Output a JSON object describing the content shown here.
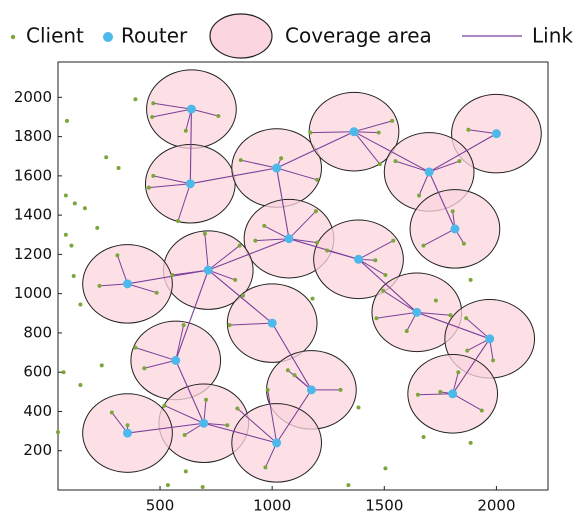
{
  "chart_data": {
    "type": "network",
    "series": [
      {
        "name": "Client",
        "color": "#7aa63a"
      },
      {
        "name": "Router",
        "color": "#4db8ea"
      },
      {
        "name": "Coverage area",
        "color": "#fbd6de"
      },
      {
        "name": "Link",
        "color": "#7b3f99"
      }
    ],
    "xlim": [
      45,
      2230
    ],
    "ylim": [
      0,
      2180
    ],
    "xticks": [
      500,
      1000,
      1500,
      2000
    ],
    "yticks": [
      200,
      400,
      600,
      800,
      1000,
      1200,
      1400,
      1600,
      1800,
      2000
    ],
    "coverage_radius": 200,
    "routers": {
      "x": [
        640,
        635,
        1020,
        1365,
        2000,
        1700,
        1815,
        1075,
        1385,
        715,
        355,
        1645,
        1000,
        1970,
        570,
        1175,
        1805,
        695,
        355,
        1020
      ],
      "y": [
        1940,
        1560,
        1640,
        1825,
        1815,
        1620,
        1330,
        1280,
        1175,
        1120,
        1050,
        905,
        850,
        770,
        660,
        510,
        490,
        340,
        290,
        240
      ]
    },
    "router_links": [
      [
        0,
        1
      ],
      [
        1,
        2
      ],
      [
        2,
        3
      ],
      [
        3,
        5
      ],
      [
        5,
        4
      ],
      [
        5,
        6
      ],
      [
        2,
        7
      ],
      [
        7,
        8
      ],
      [
        7,
        9
      ],
      [
        9,
        10
      ],
      [
        8,
        11
      ],
      [
        11,
        13
      ],
      [
        12,
        9
      ],
      [
        9,
        14
      ],
      [
        14,
        17
      ],
      [
        17,
        18
      ],
      [
        17,
        19
      ],
      [
        19,
        15
      ],
      [
        15,
        12
      ],
      [
        13,
        16
      ]
    ],
    "clients": {
      "x": [
        470,
        760,
        615,
        465,
        450,
        580,
        470,
        860,
        1200,
        1040,
        1170,
        1475,
        1535,
        1480,
        1875,
        1655,
        1835,
        1550,
        1675,
        1855,
        1805,
        925,
        1195,
        965,
        1200,
        1540,
        1460,
        1245,
        1505,
        855,
        835,
        700,
        555,
        230,
        485,
        310,
        1465,
        1600,
        1495,
        1795,
        810,
        1865,
        1985,
        1870,
        605,
        430,
        390,
        1070,
        1305,
        1100,
        1650,
        1750,
        1935,
        1830,
        520,
        705,
        800,
        610,
        285,
        355,
        845,
        980,
        970,
        85,
        390,
        260,
        315,
        80,
        120,
        165,
        80,
        105,
        115,
        145,
        70,
        145,
        45,
        220,
        240,
        615,
        690,
        535,
        1340,
        1505,
        1385,
        1675,
        1885,
        1885,
        1730,
        1180,
        870
      ],
      "y": [
        1970,
        1905,
        1830,
        1900,
        1540,
        1370,
        1600,
        1680,
        1580,
        1690,
        1820,
        1820,
        1880,
        1660,
        1835,
        1500,
        1675,
        1675,
        1245,
        1255,
        1420,
        1270,
        1420,
        1345,
        1260,
        1270,
        1170,
        1220,
        1095,
        1245,
        1070,
        1305,
        1095,
        1040,
        1005,
        1195,
        875,
        810,
        1015,
        890,
        840,
        875,
        660,
        710,
        840,
        620,
        725,
        610,
        510,
        585,
        485,
        500,
        405,
        600,
        430,
        460,
        330,
        280,
        395,
        330,
        415,
        510,
        115,
        1880,
        1990,
        1695,
        1640,
        1500,
        1460,
        1435,
        1300,
        1245,
        1090,
        945,
        600,
        535,
        295,
        1335,
        635,
        95,
        15,
        25,
        25,
        110,
        420,
        270,
        240,
        1070,
        965,
        975,
        990
      ],
      "router": [
        0,
        0,
        0,
        0,
        1,
        1,
        1,
        2,
        2,
        2,
        3,
        3,
        3,
        3,
        4,
        5,
        5,
        5,
        6,
        6,
        6,
        7,
        7,
        7,
        7,
        8,
        8,
        8,
        8,
        9,
        9,
        9,
        9,
        10,
        10,
        10,
        11,
        11,
        11,
        11,
        12,
        13,
        13,
        13,
        14,
        14,
        14,
        15,
        15,
        15,
        16,
        16,
        16,
        16,
        17,
        17,
        17,
        17,
        18,
        18,
        19,
        19,
        19,
        null,
        null,
        null,
        null,
        null,
        null,
        null,
        null,
        null,
        null,
        null,
        null,
        null,
        null,
        null,
        null,
        null,
        null,
        null,
        null,
        null,
        null,
        null,
        null,
        null,
        null,
        null,
        null
      ]
    }
  }
}
